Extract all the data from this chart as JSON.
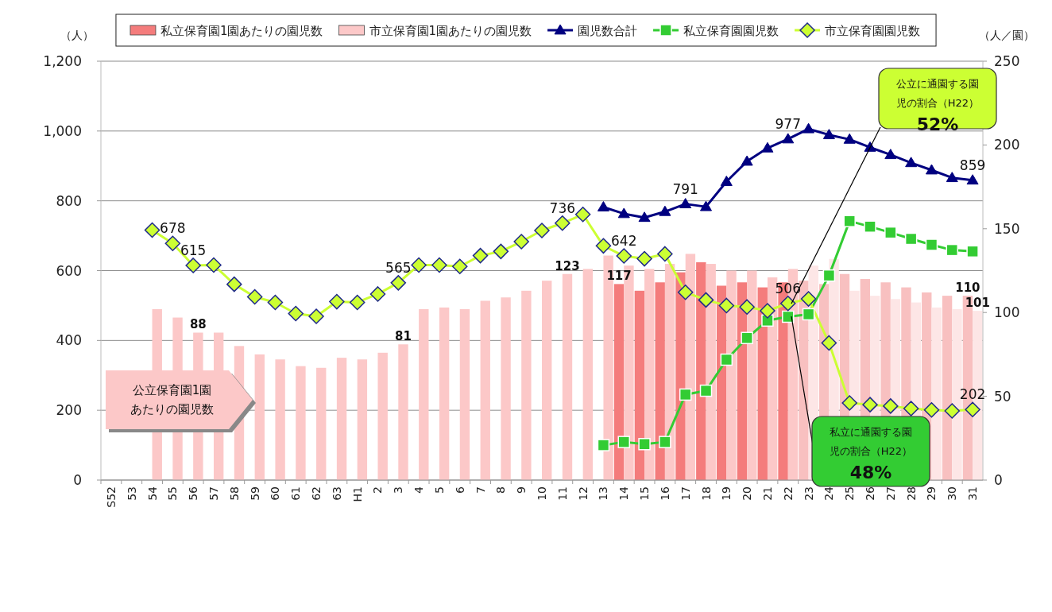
{
  "chart_data": {
    "type": "bar",
    "categories": [
      "S52",
      "53",
      "54",
      "55",
      "56",
      "57",
      "58",
      "59",
      "60",
      "61",
      "62",
      "63",
      "H1",
      "2",
      "3",
      "4",
      "5",
      "6",
      "7",
      "8",
      "9",
      "10",
      "11",
      "12",
      "13",
      "14",
      "15",
      "16",
      "17",
      "18",
      "19",
      "20",
      "21",
      "22",
      "23",
      "24",
      "25",
      "26",
      "27",
      "28",
      "29",
      "30",
      "31"
    ],
    "series": [
      {
        "name": "私立保育園1園あたりの園児数",
        "axis": "y2",
        "color": "#f47c7c",
        "values": [
          null,
          null,
          null,
          null,
          null,
          null,
          null,
          null,
          null,
          null,
          null,
          null,
          null,
          null,
          null,
          null,
          null,
          null,
          null,
          null,
          null,
          null,
          null,
          null,
          null,
          117,
          113,
          118,
          124,
          130,
          116,
          118,
          115,
          118,
          119,
          117,
          123,
          120,
          118,
          115,
          112,
          110,
          110
        ],
        "colors": [
          null,
          null,
          null,
          null,
          null,
          null,
          null,
          null,
          null,
          null,
          null,
          null,
          null,
          null,
          null,
          null,
          null,
          null,
          null,
          null,
          null,
          null,
          null,
          null,
          null,
          "#f47c7c",
          "#f47c7c",
          "#f47c7c",
          "#f47c7c",
          "#f47c7c",
          "#f47c7c",
          "#f47c7c",
          "#f47c7c",
          "#f47c7c",
          "#f8c0c0",
          "#f8c0c0",
          "#f8c0c0",
          "#f8c0c0",
          "#f8c0c0",
          "#f8c0c0",
          "#f8c0c0",
          "#f8c0c0",
          "#f8c0c0"
        ],
        "value_labels": [
          null,
          null,
          null,
          null,
          null,
          null,
          null,
          null,
          null,
          null,
          null,
          null,
          null,
          null,
          null,
          null,
          null,
          null,
          null,
          null,
          null,
          null,
          null,
          null,
          null,
          "117",
          null,
          null,
          null,
          null,
          null,
          null,
          null,
          null,
          null,
          null,
          null,
          null,
          null,
          null,
          null,
          null,
          "110"
        ]
      },
      {
        "name": "市立保育園1園あたりの園児数",
        "axis": "y2",
        "color": "#fcc8c8",
        "values": [
          null,
          null,
          102,
          97,
          88,
          88,
          80,
          75,
          72,
          68,
          67,
          73,
          72,
          76,
          81,
          102,
          103,
          102,
          107,
          109,
          113,
          119,
          123,
          126,
          134,
          128,
          126,
          129,
          135,
          129,
          125,
          125,
          121,
          126,
          128,
          132,
          113,
          110,
          108,
          106,
          103,
          102,
          101
        ],
        "colors": [
          null,
          null,
          "#fcc8c8",
          "#fcc8c8",
          "#fcc8c8",
          "#fcc8c8",
          "#fcc8c8",
          "#fcc8c8",
          "#fcc8c8",
          "#fcc8c8",
          "#fcc8c8",
          "#fcc8c8",
          "#fcc8c8",
          "#fcc8c8",
          "#fcc8c8",
          "#fcc8c8",
          "#fcc8c8",
          "#fcc8c8",
          "#fcc8c8",
          "#fcc8c8",
          "#fcc8c8",
          "#fcc8c8",
          "#fcc8c8",
          "#fcc8c8",
          "#fcc8c8",
          "#fcc8c8",
          "#fcc8c8",
          "#fcc8c8",
          "#fcc8c8",
          "#fcc8c8",
          "#fcc8c8",
          "#fcc8c8",
          "#fcc8c8",
          "#fcc8c8",
          "#fde6e6",
          "#fde6e6",
          "#fde6e6",
          "#fde6e6",
          "#fde6e6",
          "#fde6e6",
          "#fde6e6",
          "#fde6e6",
          "#fde6e6"
        ],
        "value_labels": [
          null,
          null,
          null,
          null,
          "88",
          null,
          null,
          null,
          null,
          null,
          null,
          null,
          null,
          null,
          "81",
          null,
          null,
          null,
          null,
          null,
          null,
          null,
          "123",
          null,
          null,
          null,
          null,
          null,
          null,
          null,
          null,
          null,
          null,
          null,
          null,
          null,
          null,
          null,
          null,
          null,
          null,
          null,
          "101"
        ]
      },
      {
        "name": "園児数合計",
        "type": "line",
        "marker": "triangle",
        "color": "#000080",
        "values": [
          null,
          null,
          null,
          null,
          null,
          null,
          null,
          null,
          null,
          null,
          null,
          null,
          null,
          null,
          null,
          null,
          null,
          null,
          null,
          null,
          null,
          null,
          null,
          null,
          782,
          763,
          752,
          769,
          791,
          783,
          855,
          913,
          951,
          977,
          1006,
          989,
          976,
          953,
          932,
          909,
          888,
          866,
          859
        ],
        "value_labels": [
          null,
          null,
          null,
          null,
          null,
          null,
          null,
          null,
          null,
          null,
          null,
          null,
          null,
          null,
          null,
          null,
          null,
          null,
          null,
          null,
          null,
          null,
          null,
          null,
          null,
          null,
          null,
          null,
          "791",
          null,
          null,
          null,
          null,
          "977",
          null,
          null,
          null,
          null,
          null,
          null,
          null,
          null,
          "859"
        ]
      },
      {
        "name": "私立保育園園児数",
        "type": "line",
        "marker": "square",
        "color": "#33cc33",
        "values": [
          null,
          null,
          null,
          null,
          null,
          null,
          null,
          null,
          null,
          null,
          null,
          null,
          null,
          null,
          null,
          null,
          null,
          null,
          null,
          null,
          null,
          null,
          null,
          null,
          100,
          109,
          103,
          109,
          245,
          256,
          345,
          407,
          457,
          468,
          475,
          586,
          742,
          726,
          709,
          691,
          674,
          659,
          655
        ]
      },
      {
        "name": "市立保育園園児数",
        "type": "line",
        "marker": "diamond",
        "color": "#ccff33",
        "values": [
          null,
          null,
          716,
          678,
          615,
          616,
          561,
          525,
          509,
          477,
          469,
          511,
          509,
          533,
          565,
          616,
          616,
          612,
          643,
          655,
          683,
          715,
          736,
          761,
          671,
          642,
          634,
          648,
          538,
          516,
          500,
          496,
          485,
          506,
          519,
          393,
          221,
          216,
          212,
          205,
          201,
          198,
          202
        ],
        "value_labels": [
          null,
          null,
          null,
          "678",
          "615",
          null,
          null,
          null,
          null,
          null,
          null,
          null,
          null,
          null,
          "565",
          null,
          null,
          null,
          null,
          null,
          null,
          null,
          "736",
          null,
          null,
          "642",
          null,
          null,
          null,
          null,
          null,
          null,
          null,
          "506",
          null,
          null,
          null,
          null,
          null,
          null,
          null,
          null,
          "202"
        ]
      }
    ],
    "ylabel": "（人）",
    "y2label": "（人／園）",
    "ylim": [
      0,
      1200
    ],
    "yticks": [
      0,
      200,
      400,
      600,
      800,
      {
        "value": 1000,
        "label": "1,000"
      },
      {
        "value": 1200,
        "label": "1,200"
      }
    ],
    "y2lim": [
      0,
      250
    ],
    "y2ticks": [
      0,
      50,
      100,
      150,
      200,
      250
    ],
    "grid": "y",
    "legend": "top",
    "annotations": [
      "公立保育園1園あたりの園児数",
      "公立に通園する園児の割合（H22）",
      "52%",
      "私立に通園する園児の割合（H22）",
      "48%"
    ]
  }
}
